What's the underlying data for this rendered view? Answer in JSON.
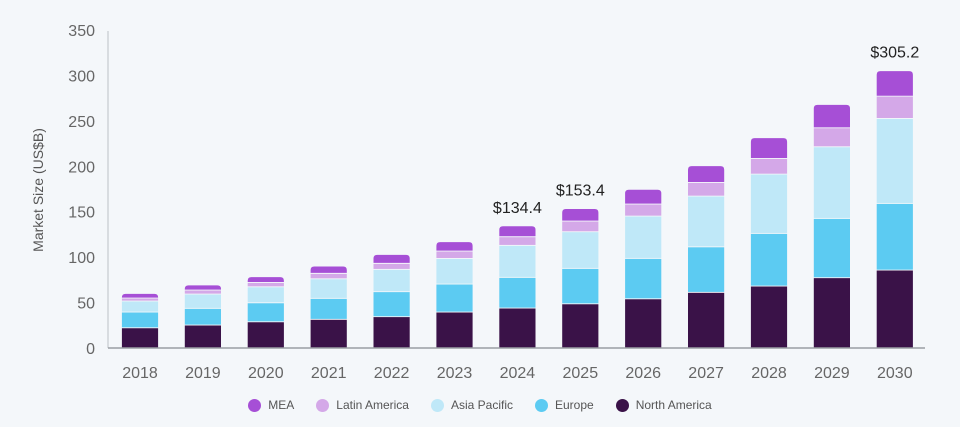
{
  "chart_data": {
    "type": "bar",
    "stacked": true,
    "title": "",
    "xlabel": "",
    "ylabel": "Market Size (US$B)",
    "ylim": [
      0,
      350
    ],
    "yticks": [
      0,
      50,
      100,
      150,
      200,
      250,
      300,
      350
    ],
    "grid": false,
    "legend_position": "bottom",
    "categories": [
      "2018",
      "2019",
      "2020",
      "2021",
      "2022",
      "2023",
      "2024",
      "2025",
      "2026",
      "2027",
      "2028",
      "2029",
      "2030"
    ],
    "series": [
      {
        "name": "North America",
        "color": "#3a1248",
        "values": [
          22.3,
          25.3,
          28.9,
          31.6,
          34.5,
          39.6,
          44.0,
          48.7,
          54.2,
          61.3,
          68.2,
          77.4,
          85.8
        ]
      },
      {
        "name": "Europe",
        "color": "#5ccbf2",
        "values": [
          17.3,
          18.4,
          20.9,
          23.1,
          27.5,
          30.8,
          33.8,
          39.0,
          44.5,
          50.1,
          58.0,
          65.3,
          73.4
        ]
      },
      {
        "name": "Asia Pacific",
        "color": "#bfe8f8",
        "values": [
          12.1,
          15.7,
          17.6,
          21.5,
          24.6,
          28.2,
          35.2,
          40.3,
          46.5,
          55.8,
          65.2,
          78.8,
          93.5
        ]
      },
      {
        "name": "Latin America",
        "color": "#d4a8e8",
        "values": [
          3.3,
          4.4,
          4.8,
          6.0,
          6.6,
          8.1,
          9.5,
          11.7,
          13.2,
          15.1,
          17.3,
          20.9,
          24.5
        ]
      },
      {
        "name": "MEA",
        "color": "#a64fd6",
        "values": [
          5.0,
          5.5,
          6.2,
          8.0,
          9.8,
          10.3,
          11.9,
          13.7,
          16.2,
          18.3,
          22.7,
          25.6,
          28.0
        ]
      }
    ],
    "legend_order": [
      "MEA",
      "Latin America",
      "Asia Pacific",
      "Europe",
      "North America"
    ],
    "annotations": [
      {
        "category": "2024",
        "text": "$134.4",
        "value": 134.4
      },
      {
        "category": "2025",
        "text": "$153.4",
        "value": 153.4
      },
      {
        "category": "2030",
        "text": "$305.2",
        "value": 305.2
      }
    ]
  }
}
